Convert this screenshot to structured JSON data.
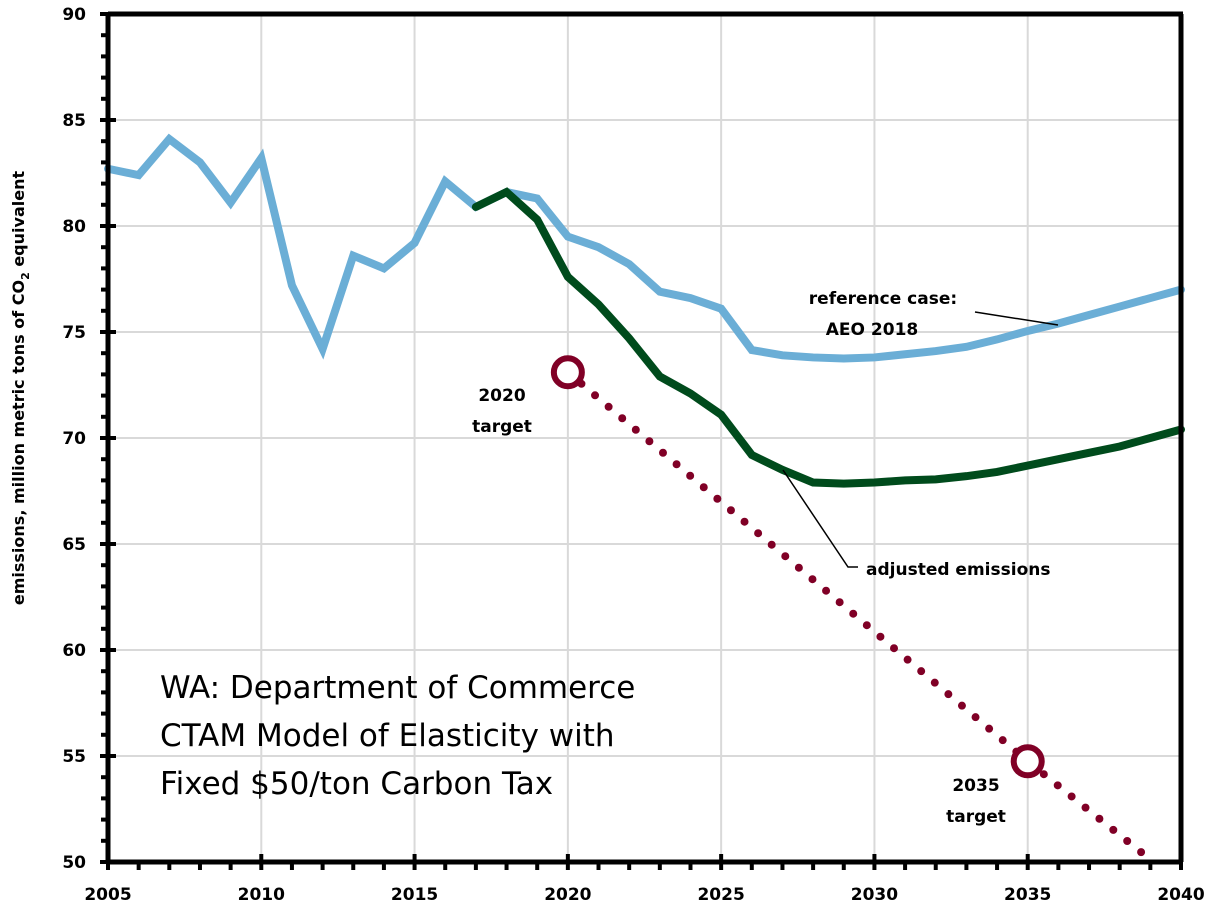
{
  "chart_data": {
    "type": "line",
    "title": "WA: Department of Commerce CTAM Model of Elasticity with Fixed $50/ton Carbon Tax",
    "title_lines": [
      "WA: Department of Commerce",
      "CTAM Model of Elasticity with",
      "Fixed $50/ton Carbon Tax"
    ],
    "xlabel": "",
    "ylabel": "emissions, million metric tons of CO2 equivalent",
    "ylabel_parts": {
      "before": "emissions, million metric tons of CO",
      "sub": "2",
      "after": " equivalent"
    },
    "xlim": [
      2005,
      2040
    ],
    "ylim": [
      50,
      90
    ],
    "x_ticks": [
      2005,
      2010,
      2015,
      2020,
      2025,
      2030,
      2035,
      2040
    ],
    "y_ticks": [
      50,
      55,
      60,
      65,
      70,
      75,
      80,
      85,
      90
    ],
    "grid": true,
    "series": [
      {
        "name": "reference case: AEO 2018",
        "color": "#6baed6",
        "style": "solid",
        "x": [
          2005,
          2006,
          2007,
          2008,
          2009,
          2010,
          2011,
          2012,
          2013,
          2014,
          2015,
          2016,
          2017,
          2018,
          2019,
          2020,
          2021,
          2022,
          2023,
          2024,
          2025,
          2026,
          2027,
          2028,
          2029,
          2030,
          2031,
          2032,
          2033,
          2034,
          2035,
          2036,
          2037,
          2038,
          2039,
          2040
        ],
        "values": [
          82.7,
          82.4,
          84.1,
          83.0,
          81.1,
          83.2,
          77.2,
          74.2,
          78.6,
          78.0,
          79.2,
          82.1,
          80.9,
          81.6,
          81.3,
          79.5,
          79.0,
          78.2,
          76.9,
          76.6,
          76.1,
          74.15,
          73.9,
          73.8,
          73.75,
          73.8,
          73.95,
          74.1,
          74.3,
          74.65,
          75.05,
          75.4,
          75.8,
          76.2,
          76.6,
          77.0
        ]
      },
      {
        "name": "adjusted emissions",
        "color": "#004b1c",
        "style": "solid",
        "x": [
          2017,
          2018,
          2019,
          2020,
          2021,
          2022,
          2023,
          2024,
          2025,
          2026,
          2027,
          2028,
          2029,
          2030,
          2031,
          2032,
          2033,
          2034,
          2035,
          2036,
          2037,
          2038,
          2039,
          2040
        ],
        "values": [
          80.9,
          81.6,
          80.3,
          77.6,
          76.3,
          74.7,
          72.9,
          72.1,
          71.1,
          69.2,
          68.5,
          67.9,
          67.85,
          67.9,
          68.0,
          68.05,
          68.2,
          68.4,
          68.7,
          69.0,
          69.3,
          69.6,
          70.0,
          70.4
        ]
      },
      {
        "name": "target path",
        "color": "#800026",
        "style": "dotted",
        "x": [
          2020,
          2035,
          2039.1
        ],
        "values": [
          73.1,
          54.75,
          50.0
        ]
      }
    ],
    "markers": [
      {
        "name": "2020 target",
        "label_lines": [
          "2020",
          "target"
        ],
        "x": 2020,
        "y": 73.1,
        "color": "#800026"
      },
      {
        "name": "2035 target",
        "label_lines": [
          "2035",
          "target"
        ],
        "x": 2035,
        "y": 54.75,
        "color": "#800026"
      }
    ],
    "annotations": [
      {
        "name": "reference-case-label",
        "lines": [
          "reference case:",
          "AEO 2018"
        ],
        "points_to": {
          "x": 2036,
          "y": 75.3
        }
      },
      {
        "name": "adjusted-emissions-label",
        "lines": [
          "adjusted emissions"
        ],
        "points_to": {
          "x": 2027.3,
          "y": 68.4
        }
      }
    ]
  }
}
